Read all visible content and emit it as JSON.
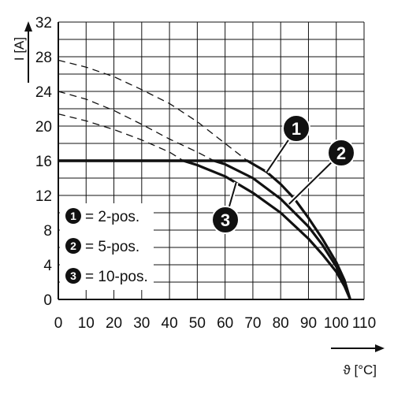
{
  "chart_data": {
    "type": "line",
    "title": "",
    "xlabel": "ϑ [°C]",
    "ylabel": "I [A]",
    "xlim": [
      0,
      110
    ],
    "ylim": [
      0,
      32
    ],
    "x_ticks": [
      "0",
      "10",
      "20",
      "30",
      "40",
      "50",
      "60",
      "70",
      "80",
      "90",
      "100",
      "110"
    ],
    "y_ticks": [
      "0",
      "4",
      "8",
      "12",
      "16",
      "20",
      "24",
      "28",
      "32"
    ],
    "grid": true,
    "legend_position": "lower-left",
    "series": [
      {
        "name": "2-pos.",
        "marker": "1",
        "derating_solid": [
          [
            0,
            16
          ],
          [
            68,
            16
          ],
          [
            75,
            14.7
          ],
          [
            80,
            13.3
          ],
          [
            85,
            11.6
          ],
          [
            90,
            9.4
          ],
          [
            95,
            7
          ],
          [
            100,
            4.3
          ],
          [
            103,
            2.2
          ],
          [
            105,
            0
          ]
        ],
        "derating_dashed": [
          [
            0,
            27.6
          ],
          [
            10,
            26.8
          ],
          [
            20,
            25.7
          ],
          [
            30,
            24.2
          ],
          [
            40,
            22.6
          ],
          [
            50,
            20.5
          ],
          [
            60,
            18
          ],
          [
            68,
            16
          ]
        ]
      },
      {
        "name": "5-pos.",
        "marker": "2",
        "derating_solid": [
          [
            0,
            16
          ],
          [
            56,
            16
          ],
          [
            60,
            15.6
          ],
          [
            70,
            14
          ],
          [
            80,
            11.6
          ],
          [
            90,
            8.4
          ],
          [
            95,
            6.3
          ],
          [
            100,
            3.8
          ],
          [
            103,
            1.8
          ],
          [
            105,
            0
          ]
        ],
        "derating_dashed": [
          [
            0,
            24
          ],
          [
            10,
            23.1
          ],
          [
            20,
            21.8
          ],
          [
            30,
            20.2
          ],
          [
            40,
            18.5
          ],
          [
            50,
            17
          ],
          [
            56,
            16
          ]
        ]
      },
      {
        "name": "10-pos.",
        "marker": "3",
        "derating_solid": [
          [
            0,
            16
          ],
          [
            45,
            16
          ],
          [
            50,
            15.5
          ],
          [
            60,
            14.2
          ],
          [
            70,
            12.3
          ],
          [
            80,
            10
          ],
          [
            90,
            7
          ],
          [
            95,
            5.2
          ],
          [
            100,
            3.2
          ],
          [
            103,
            1.5
          ],
          [
            105,
            0
          ]
        ],
        "derating_dashed": [
          [
            0,
            21.4
          ],
          [
            10,
            20.6
          ],
          [
            20,
            19.6
          ],
          [
            30,
            18.4
          ],
          [
            40,
            17
          ],
          [
            45,
            16
          ]
        ]
      }
    ],
    "colors": {
      "line": "#111111",
      "grid": "#111111",
      "background": "#ffffff"
    }
  }
}
